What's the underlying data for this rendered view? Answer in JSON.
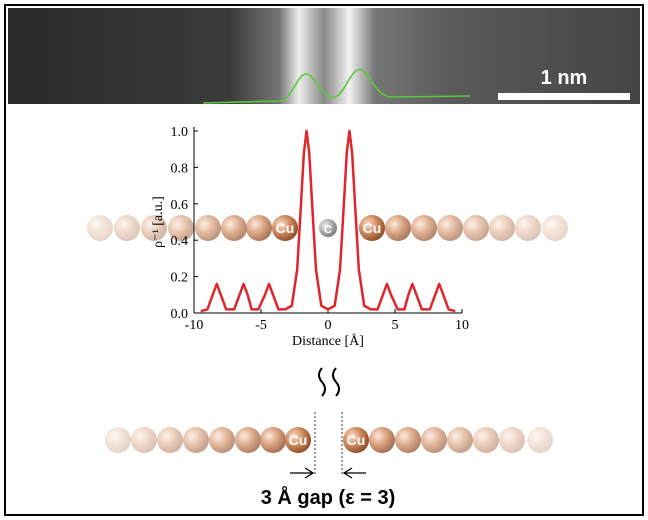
{
  "scale_bar": {
    "label": "1 nm"
  },
  "top_chain": {
    "labels": [
      "Cu",
      "C",
      "Cu"
    ]
  },
  "bottom_chain": {
    "labels": [
      "Cu",
      "Cu"
    ]
  },
  "gap_label": "3 Å gap (ε = 3)",
  "chart_data": {
    "type": "line",
    "x_label": "Distance [Å]",
    "y_label": "ρ⁻¹ [a.u.]",
    "x": [
      -9.5,
      -9,
      -8.6,
      -8.3,
      -8,
      -7.6,
      -7,
      -6.6,
      -6.3,
      -6,
      -5.7,
      -5.2,
      -4.7,
      -4.4,
      -4.1,
      -3.7,
      -3.2,
      -2.7,
      -2.3,
      -2,
      -1.8,
      -1.6,
      -1.4,
      -1.2,
      -0.9,
      -0.5,
      0,
      0.5,
      0.9,
      1.2,
      1.4,
      1.6,
      1.8,
      2,
      2.3,
      2.7,
      3.2,
      3.7,
      4.1,
      4.4,
      4.7,
      5.2,
      5.7,
      6,
      6.3,
      6.6,
      7,
      7.6,
      8,
      8.3,
      8.6,
      9,
      9.5
    ],
    "series": [
      {
        "color": "#e0262a",
        "values": [
          0.01,
          0.02,
          0.1,
          0.16,
          0.1,
          0.02,
          0.02,
          0.1,
          0.16,
          0.1,
          0.02,
          0.02,
          0.1,
          0.16,
          0.1,
          0.02,
          0.02,
          0.04,
          0.24,
          0.62,
          0.88,
          1.0,
          0.88,
          0.62,
          0.24,
          0.04,
          0.02,
          0.04,
          0.24,
          0.62,
          0.88,
          1.0,
          0.88,
          0.62,
          0.24,
          0.04,
          0.02,
          0.02,
          0.1,
          0.16,
          0.1,
          0.02,
          0.02,
          0.1,
          0.16,
          0.1,
          0.02,
          0.02,
          0.1,
          0.16,
          0.1,
          0.02,
          0.01
        ]
      }
    ],
    "xlim": [
      -10,
      10
    ],
    "xticks": [
      -10,
      -5,
      0,
      5,
      10
    ],
    "ylim": [
      0,
      1.0
    ],
    "yticks": [
      {
        "value": 0,
        "label": "0.0"
      },
      0.2,
      0.4,
      0.6,
      0.8,
      {
        "value": 1.0,
        "label": "1.0"
      }
    ]
  }
}
